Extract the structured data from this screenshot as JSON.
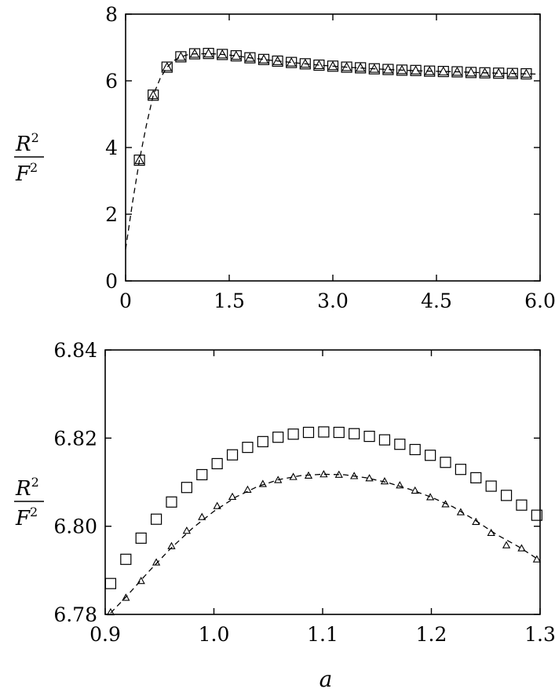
{
  "chart_data": [
    {
      "type": "scatter",
      "panel": "top",
      "ylabel": {
        "num": "R",
        "num_sup": "2",
        "den": "F",
        "den_sup": "2"
      },
      "xlim": [
        0,
        6.0
      ],
      "ylim": [
        0,
        8
      ],
      "xticks": [
        "0",
        "1.5",
        "3.0",
        "4.5",
        "6.0"
      ],
      "yticks": [
        "0",
        "2",
        "4",
        "6",
        "8"
      ],
      "grid": false,
      "series": [
        {
          "marker": "square",
          "x": [
            0.2,
            0.4,
            0.6,
            0.8,
            1.0,
            1.2,
            1.4,
            1.6,
            1.8,
            2.0,
            2.2,
            2.4,
            2.6,
            2.8,
            3.0,
            3.2,
            3.4,
            3.6,
            3.8,
            4.0,
            4.2,
            4.4,
            4.6,
            4.8,
            5.0,
            5.2,
            5.4,
            5.6,
            5.8
          ],
          "y": [
            3.62,
            5.57,
            6.41,
            6.72,
            6.81,
            6.82,
            6.79,
            6.75,
            6.69,
            6.64,
            6.59,
            6.55,
            6.51,
            6.47,
            6.44,
            6.41,
            6.39,
            6.36,
            6.34,
            6.32,
            6.31,
            6.29,
            6.28,
            6.27,
            6.25,
            6.24,
            6.23,
            6.22,
            6.21
          ]
        },
        {
          "marker": "triangle",
          "x": [
            0.2,
            0.4,
            0.6,
            0.8,
            1.0,
            1.2,
            1.4,
            1.6,
            1.8,
            2.0,
            2.2,
            2.4,
            2.6,
            2.8,
            3.0,
            3.2,
            3.4,
            3.6,
            3.8,
            4.0,
            4.2,
            4.4,
            4.6,
            4.8,
            5.0,
            5.2,
            5.4,
            5.6,
            5.8
          ],
          "y": [
            3.62,
            5.57,
            6.41,
            6.72,
            6.81,
            6.82,
            6.79,
            6.75,
            6.69,
            6.64,
            6.59,
            6.55,
            6.51,
            6.47,
            6.44,
            6.41,
            6.39,
            6.36,
            6.34,
            6.32,
            6.31,
            6.29,
            6.28,
            6.27,
            6.25,
            6.24,
            6.23,
            6.22,
            6.21
          ]
        },
        {
          "marker": "dashed-line",
          "x": [
            0.0,
            0.1,
            0.2,
            0.3,
            0.4,
            0.5,
            0.6,
            0.7,
            0.8,
            0.9,
            1.0,
            1.1,
            1.2,
            1.4,
            1.6,
            1.8,
            2.0,
            2.4,
            2.8,
            3.2,
            3.6,
            4.0,
            4.4,
            4.8,
            5.2,
            5.6,
            6.0
          ],
          "y": [
            0.95,
            2.35,
            3.62,
            4.66,
            5.57,
            6.07,
            6.41,
            6.61,
            6.72,
            6.78,
            6.81,
            6.81,
            6.82,
            6.79,
            6.75,
            6.69,
            6.64,
            6.55,
            6.47,
            6.41,
            6.36,
            6.32,
            6.29,
            6.27,
            6.24,
            6.22,
            6.2
          ]
        }
      ]
    },
    {
      "type": "scatter",
      "panel": "bottom",
      "ylabel": {
        "num": "R",
        "num_sup": "2",
        "den": "F",
        "den_sup": "2"
      },
      "xlabel": "a",
      "xlim": [
        0.9,
        1.3
      ],
      "ylim": [
        6.78,
        6.84
      ],
      "xticks": [
        "0.9",
        "1.0",
        "1.1",
        "1.2",
        "1.3"
      ],
      "yticks": [
        "6.78",
        "6.80",
        "6.82",
        "6.84"
      ],
      "grid": false,
      "series": [
        {
          "marker": "square",
          "x": [
            0.905,
            0.919,
            0.933,
            0.947,
            0.961,
            0.975,
            0.989,
            1.003,
            1.017,
            1.031,
            1.045,
            1.059,
            1.073,
            1.087,
            1.101,
            1.115,
            1.129,
            1.143,
            1.157,
            1.171,
            1.185,
            1.199,
            1.213,
            1.227,
            1.241,
            1.255,
            1.269,
            1.283,
            1.297
          ],
          "y": [
            6.787,
            6.7925,
            6.7973,
            6.8016,
            6.8055,
            6.8088,
            6.8117,
            6.8142,
            6.8162,
            6.8179,
            6.8192,
            6.8202,
            6.8209,
            6.8213,
            6.8214,
            6.8213,
            6.821,
            6.8204,
            6.8196,
            6.8186,
            6.8174,
            6.8161,
            6.8145,
            6.8129,
            6.811,
            6.8091,
            6.807,
            6.8048,
            6.8025
          ]
        },
        {
          "marker": "triangle",
          "x": [
            0.905,
            0.919,
            0.933,
            0.947,
            0.961,
            0.975,
            0.989,
            1.003,
            1.017,
            1.031,
            1.045,
            1.059,
            1.073,
            1.087,
            1.101,
            1.115,
            1.129,
            1.143,
            1.157,
            1.171,
            1.185,
            1.199,
            1.213,
            1.227,
            1.241,
            1.255,
            1.269,
            1.283,
            1.297
          ],
          "y": [
            6.7805,
            6.7838,
            6.7876,
            6.7918,
            6.7955,
            6.799,
            6.8021,
            6.8046,
            6.8067,
            6.8083,
            6.8096,
            6.8105,
            6.8112,
            6.8115,
            6.8118,
            6.8117,
            6.8114,
            6.8109,
            6.8102,
            6.8093,
            6.8081,
            6.8066,
            6.805,
            6.8032,
            6.801,
            6.7985,
            6.7957,
            6.795,
            6.7925
          ]
        },
        {
          "marker": "dashed-line",
          "x": [
            0.905,
            0.92,
            0.94,
            0.96,
            0.98,
            1.0,
            1.02,
            1.04,
            1.06,
            1.08,
            1.1,
            1.12,
            1.14,
            1.16,
            1.18,
            1.2,
            1.22,
            1.24,
            1.26,
            1.28,
            1.3
          ],
          "y": [
            6.7803,
            6.7842,
            6.7897,
            6.7949,
            6.7995,
            6.8034,
            6.8066,
            6.809,
            6.8106,
            6.8115,
            6.8118,
            6.8117,
            6.811,
            6.8099,
            6.8084,
            6.8066,
            6.8044,
            6.8014,
            6.7981,
            6.7954,
            6.7922
          ]
        }
      ]
    }
  ]
}
